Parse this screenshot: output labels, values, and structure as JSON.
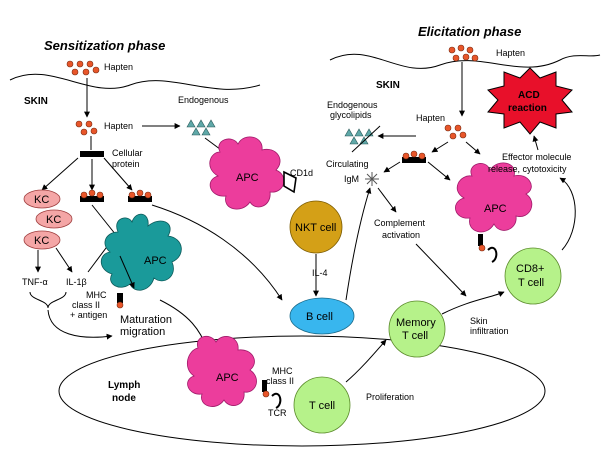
{
  "titles": {
    "sensitization": "Sensitization phase",
    "elicitation": "Elicitation phase"
  },
  "labels": {
    "hapten_top_left": "Hapten",
    "skin_left": "SKIN",
    "hapten_left": "Hapten",
    "endogenous_left": "Endogenous\nglycolipids",
    "cellular_protein": "Cellular\nprotein",
    "kc1": "KC",
    "kc2": "KC",
    "kc3": "KC",
    "tnf": "TNF-α",
    "il1b": "IL-1β",
    "apc_left": "APC",
    "mhc_left": "MHC\nclass II\n+ antigen",
    "maturation": "Maturation\nmigration",
    "apc_center": "APC",
    "cd1d": "CD1d",
    "nkt": "NKT cell",
    "il4": "IL-4",
    "bcell": "B cell",
    "lymph": "Lymph\nnode",
    "apc_lymph": "APC",
    "mhc_lymph": "MHC\nclass II",
    "tcr": "TCR",
    "tcell": "T cell",
    "proliferation": "Proliferation",
    "memory": "Memory\nT cell",
    "hapten_top_right": "Hapten",
    "skin_right": "SKIN",
    "acd": "ACD\nreaction",
    "endogenous_right": "Endogenous\nglycolipids",
    "hapten_right": "Hapten",
    "circulating": "Circulating\nIgM",
    "complement": "Complement\nactivation",
    "effector": "Effector molecule\nrelease, cytotoxicity",
    "apc_right": "APC",
    "cd8": "CD8+\nT cell",
    "skin_infiltration": "Skin\ninfiltration"
  },
  "colors": {
    "apc_pink": "#ec3d9c",
    "apc_teal": "#1a9a9a",
    "kc_pink": "#f4a6a6",
    "nkt_gold": "#d4a017",
    "bcell_blue": "#38b6ee",
    "tcell_green": "#b6f28a",
    "hapten_orange": "#e8562a",
    "glycolipid_teal": "#5fa8a8",
    "acd_red": "#e8102a"
  }
}
